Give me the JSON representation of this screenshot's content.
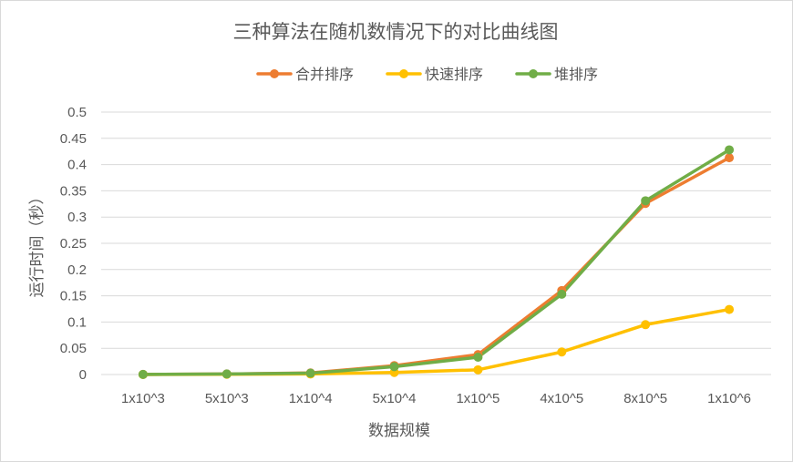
{
  "chart_data": {
    "type": "line",
    "title": "三种算法在随机数情况下的对比曲线图",
    "xlabel": "数据规模",
    "ylabel": "运行时间（秒）",
    "categories": [
      "1x10^3",
      "5x10^3",
      "1x10^4",
      "5x10^4",
      "1x10^5",
      "4x10^5",
      "8x10^5",
      "1x10^6"
    ],
    "ylim": [
      0,
      0.5
    ],
    "yticks": [
      "0",
      "0.05",
      "0.1",
      "0.15",
      "0.2",
      "0.25",
      "0.3",
      "0.35",
      "0.4",
      "0.45",
      "0.5"
    ],
    "grid": true,
    "legend_position": "top",
    "series": [
      {
        "name": "合并排序",
        "color": "#ed7d31",
        "values": [
          0.0002,
          0.001,
          0.003,
          0.017,
          0.038,
          0.16,
          0.326,
          0.413
        ]
      },
      {
        "name": "快速排序",
        "color": "#ffc000",
        "values": [
          0.0001,
          0.0005,
          0.001,
          0.004,
          0.009,
          0.043,
          0.095,
          0.124
        ]
      },
      {
        "name": "堆排序",
        "color": "#70ad47",
        "values": [
          0.0002,
          0.001,
          0.0025,
          0.015,
          0.033,
          0.153,
          0.331,
          0.428
        ]
      }
    ]
  }
}
